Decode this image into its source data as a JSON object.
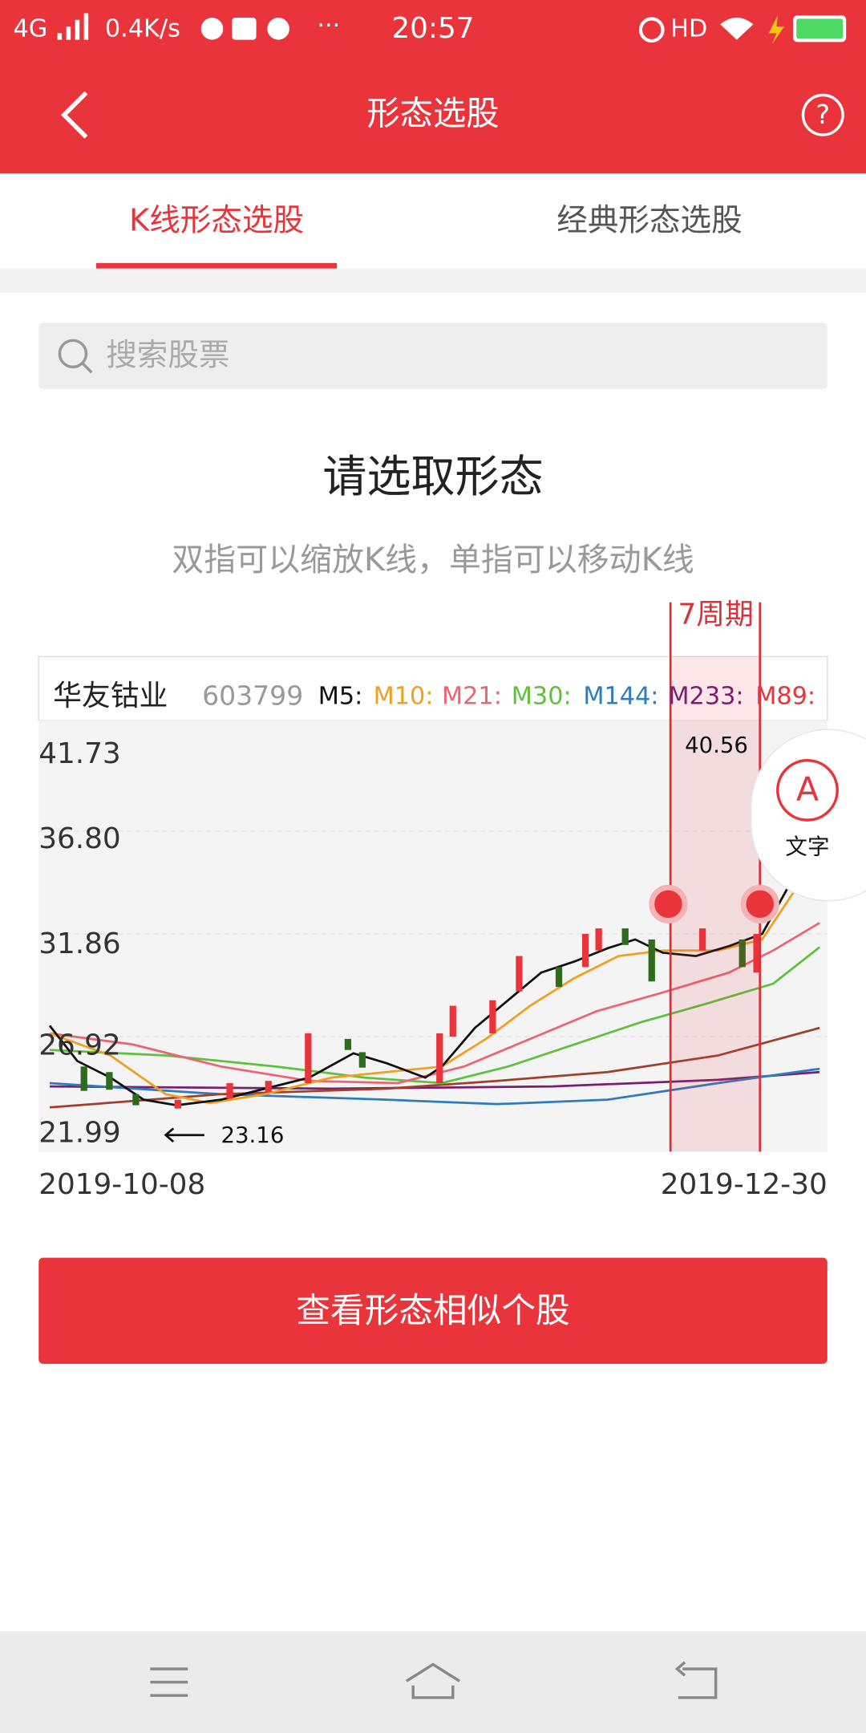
{
  "status_bar": {
    "network": "4G",
    "speed": "0.4K/s",
    "time": "20:57",
    "hd": "HD"
  },
  "header": {
    "title": "形态选股"
  },
  "tabs": [
    "K线形态选股",
    "经典形态选股"
  ],
  "search": {
    "placeholder": "搜索股票"
  },
  "prompt": {
    "title": "请选取形态",
    "subtitle": "双指可以缩放K线，单指可以移动K线"
  },
  "chart": {
    "period": "7周期",
    "stock_name": "华友钴业",
    "stock_code": "603799",
    "ma_labels": [
      "M5:",
      "M10:",
      "M21:",
      "M30:",
      "M144:",
      "M233:",
      "M89:"
    ],
    "y_labels": [
      "41.73",
      "36.80",
      "31.86",
      "26.92",
      "21.99"
    ],
    "high_label": "40.56",
    "low_label": "23.16",
    "start_date": "2019-10-08",
    "end_date": "2019-12-30"
  },
  "float_button": {
    "icon": "A",
    "label": "文字"
  },
  "action_button": "查看形态相似个股"
}
